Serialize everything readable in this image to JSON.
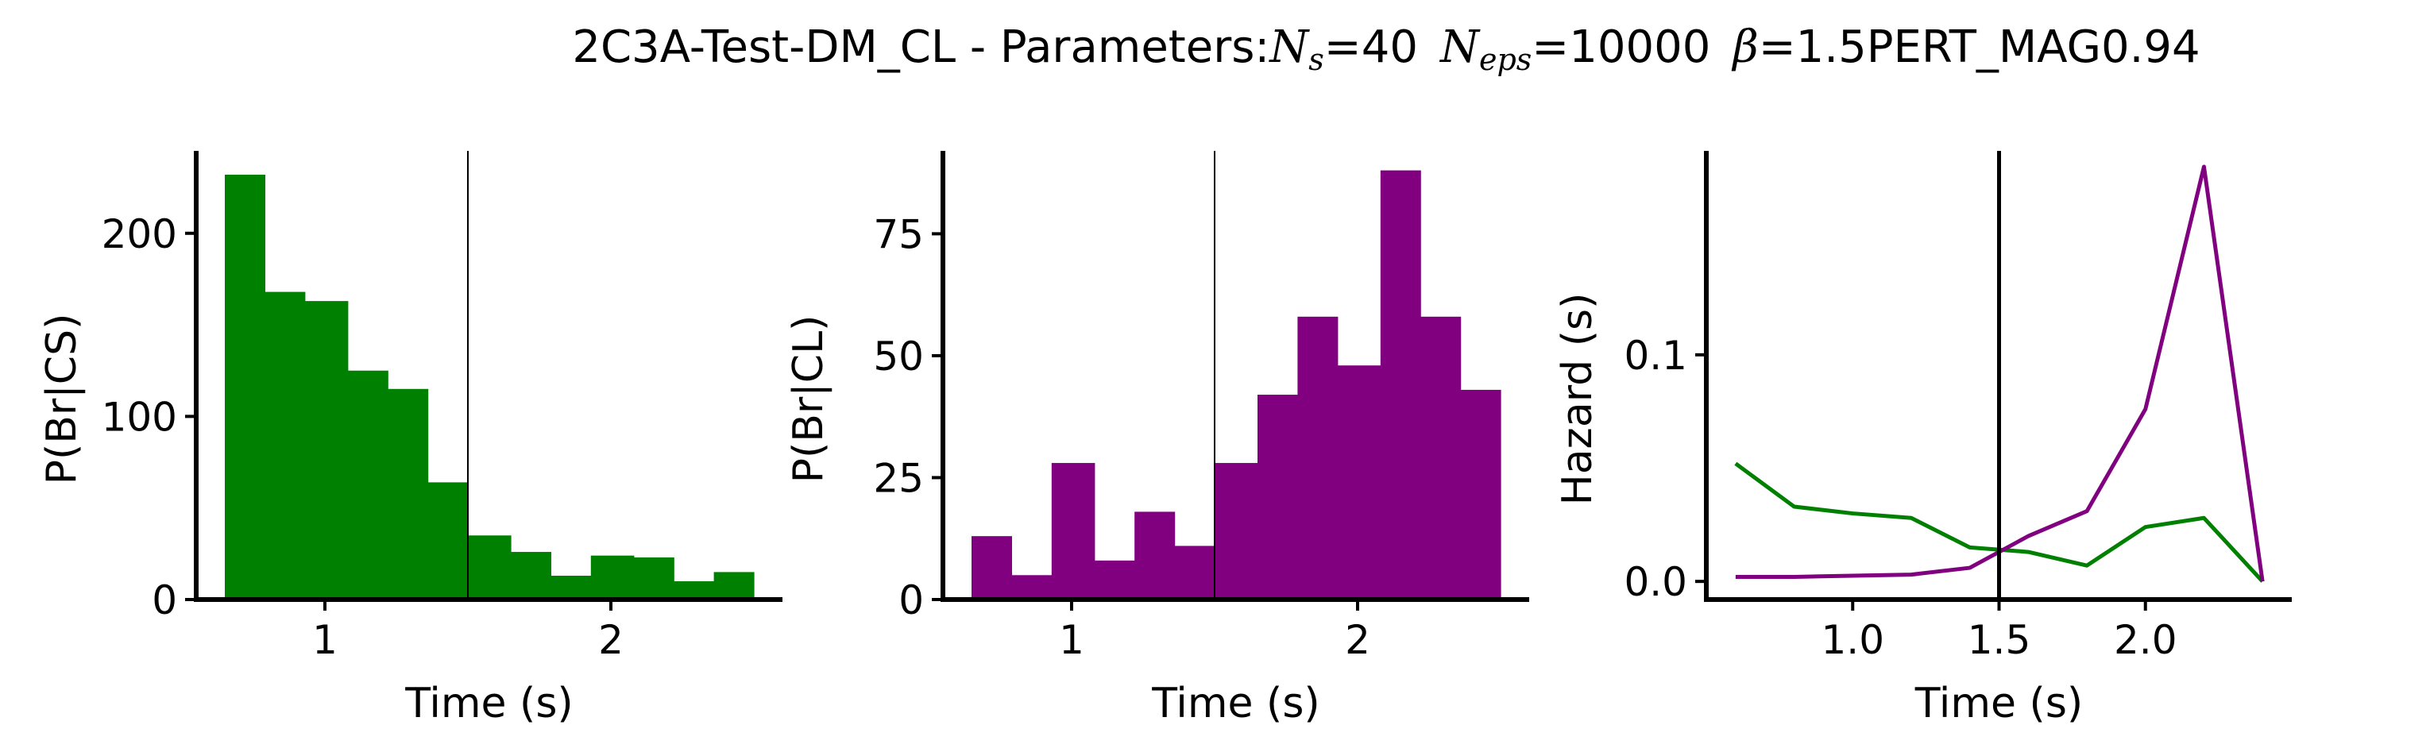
{
  "figure": {
    "title_parts": {
      "prefix": "2C3A-Test-DM_CL - Parameters:",
      "ns_sym": "N",
      "ns_sub": "s",
      "ns_val": "=40",
      "neps_sym": "N",
      "neps_sub": "eps",
      "neps_val": "=10000",
      "beta_sym": "β",
      "beta_val": "=1.5PERT_MAG0.94"
    }
  },
  "chart_data": [
    {
      "type": "bar",
      "id": "p1",
      "color": "#008000",
      "xlabel": "Time (s)",
      "ylabel": "P(Br|CS)",
      "xlim": [
        0.55,
        2.6
      ],
      "ylim": [
        0,
        245
      ],
      "xticks": [
        1,
        2
      ],
      "xtick_labels": [
        "1",
        "2"
      ],
      "yticks": [
        0,
        100,
        200
      ],
      "ytick_labels": [
        "0",
        "100",
        "200"
      ],
      "vline_x": 1.5,
      "bins": [
        {
          "x0": 0.65,
          "x1": 0.79,
          "value": 232
        },
        {
          "x0": 0.79,
          "x1": 0.93,
          "value": 168
        },
        {
          "x0": 0.93,
          "x1": 1.08,
          "value": 163
        },
        {
          "x0": 1.08,
          "x1": 1.22,
          "value": 125
        },
        {
          "x0": 1.22,
          "x1": 1.36,
          "value": 115
        },
        {
          "x0": 1.36,
          "x1": 1.5,
          "value": 64
        },
        {
          "x0": 1.5,
          "x1": 1.65,
          "value": 35
        },
        {
          "x0": 1.65,
          "x1": 1.79,
          "value": 26
        },
        {
          "x0": 1.79,
          "x1": 1.93,
          "value": 13
        },
        {
          "x0": 1.93,
          "x1": 2.08,
          "value": 24
        },
        {
          "x0": 2.08,
          "x1": 2.22,
          "value": 23
        },
        {
          "x0": 2.22,
          "x1": 2.36,
          "value": 10
        },
        {
          "x0": 2.36,
          "x1": 2.5,
          "value": 15
        }
      ]
    },
    {
      "type": "bar",
      "id": "p2",
      "color": "#800080",
      "xlabel": "Time (s)",
      "ylabel": "P(Br|CL)",
      "xlim": [
        0.55,
        2.6
      ],
      "ylim": [
        0,
        92
      ],
      "xticks": [
        1,
        2
      ],
      "xtick_labels": [
        "1",
        "2"
      ],
      "yticks": [
        0,
        25,
        50,
        75
      ],
      "ytick_labels": [
        "0",
        "25",
        "50",
        "75"
      ],
      "vline_x": 1.5,
      "bins": [
        {
          "x0": 0.65,
          "x1": 0.79,
          "value": 13
        },
        {
          "x0": 0.79,
          "x1": 0.93,
          "value": 5
        },
        {
          "x0": 0.93,
          "x1": 1.08,
          "value": 28
        },
        {
          "x0": 1.08,
          "x1": 1.22,
          "value": 8
        },
        {
          "x0": 1.22,
          "x1": 1.36,
          "value": 18
        },
        {
          "x0": 1.36,
          "x1": 1.5,
          "value": 11
        },
        {
          "x0": 1.5,
          "x1": 1.65,
          "value": 28
        },
        {
          "x0": 1.65,
          "x1": 1.79,
          "value": 42
        },
        {
          "x0": 1.79,
          "x1": 1.93,
          "value": 58
        },
        {
          "x0": 1.93,
          "x1": 2.08,
          "value": 48
        },
        {
          "x0": 2.08,
          "x1": 2.22,
          "value": 88
        },
        {
          "x0": 2.22,
          "x1": 2.36,
          "value": 58
        },
        {
          "x0": 2.36,
          "x1": 2.5,
          "value": 43
        }
      ]
    },
    {
      "type": "line",
      "id": "p3",
      "xlabel": "Time (s)",
      "ylabel": "Hazard (s)",
      "xlim": [
        0.5,
        2.5
      ],
      "ylim": [
        -0.008,
        0.19
      ],
      "xticks": [
        1.0,
        1.5,
        2.0
      ],
      "xtick_labels": [
        "1.0",
        "1.5",
        "2.0"
      ],
      "yticks": [
        0.0,
        0.1
      ],
      "ytick_labels": [
        "0.0",
        "0.1"
      ],
      "vline_x": 1.5,
      "series": [
        {
          "color": "#008000",
          "x": [
            0.6,
            0.8,
            1.0,
            1.2,
            1.4,
            1.6,
            1.8,
            2.0,
            2.2,
            2.4
          ],
          "y": [
            0.052,
            0.033,
            0.03,
            0.028,
            0.015,
            0.013,
            0.007,
            0.024,
            0.028,
            0.0
          ]
        },
        {
          "color": "#800080",
          "x": [
            0.6,
            0.8,
            1.0,
            1.2,
            1.4,
            1.6,
            1.8,
            2.0,
            2.2,
            2.4
          ],
          "y": [
            0.002,
            0.002,
            0.0025,
            0.003,
            0.006,
            0.02,
            0.031,
            0.076,
            0.183,
            0.0
          ]
        }
      ]
    }
  ]
}
